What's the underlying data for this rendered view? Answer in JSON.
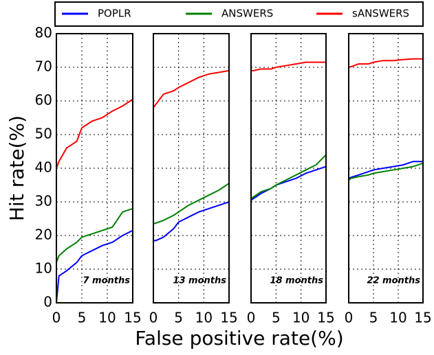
{
  "chart_data": [
    {
      "type": "line",
      "annotation": "7 months",
      "xlabel": "False positive rate(%)",
      "ylabel": "Hit rate(%)",
      "x": [
        0,
        0.5,
        2,
        4,
        5,
        7,
        9,
        11,
        13,
        15
      ],
      "series": [
        {
          "name": "POPLR",
          "color": "#0000ff",
          "values": [
            0,
            8,
            9.5,
            12,
            14,
            15.5,
            17,
            18,
            20,
            21.5
          ]
        },
        {
          "name": "ANSWERS",
          "color": "#008000",
          "values": [
            12,
            14,
            16,
            18,
            19.5,
            20.5,
            21.5,
            22.5,
            27,
            28
          ]
        },
        {
          "name": "sANSWERS",
          "color": "#ff0000",
          "values": [
            40,
            42,
            46,
            48,
            52,
            54,
            55,
            57,
            58.5,
            60.5
          ]
        }
      ],
      "xlim": [
        0,
        15
      ],
      "xticks": [
        0,
        5,
        10,
        15
      ],
      "ylim": [
        0,
        80
      ],
      "yticks": [
        0,
        10,
        20,
        30,
        40,
        50,
        60,
        70,
        80
      ],
      "grid": true
    },
    {
      "type": "line",
      "annotation": "13 months",
      "x": [
        0,
        0.5,
        2,
        4,
        5,
        7,
        9,
        11,
        13,
        15
      ],
      "series": [
        {
          "color": "#0000ff",
          "values": [
            18.5,
            18.5,
            19.5,
            22,
            24,
            25.5,
            27,
            28,
            29,
            30
          ]
        },
        {
          "color": "#008000",
          "values": [
            23.5,
            23.7,
            24.5,
            26,
            27,
            29,
            30.5,
            32,
            33.5,
            35.5
          ]
        },
        {
          "color": "#ff0000",
          "values": [
            58,
            59,
            62,
            63,
            64,
            65.5,
            67,
            68,
            68.5,
            69
          ]
        }
      ],
      "xlim": [
        0,
        15
      ],
      "xticks": [
        0,
        5,
        10,
        15
      ],
      "ylim": [
        0,
        80
      ],
      "grid": true
    },
    {
      "type": "line",
      "annotation": "18 months",
      "x": [
        0,
        0.5,
        2,
        4,
        5,
        7,
        9,
        11,
        13,
        15
      ],
      "series": [
        {
          "color": "#0000ff",
          "values": [
            30.5,
            31,
            32.5,
            34,
            35,
            36,
            37,
            38.5,
            39.5,
            40.5
          ]
        },
        {
          "color": "#008000",
          "values": [
            31,
            31.5,
            33,
            34,
            35,
            36.5,
            38,
            39.5,
            41,
            44
          ]
        },
        {
          "color": "#ff0000",
          "values": [
            69,
            69,
            69.5,
            69.5,
            70,
            70.5,
            71,
            71.5,
            71.5,
            71.5
          ]
        }
      ],
      "xlim": [
        0,
        15
      ],
      "xticks": [
        0,
        5,
        10,
        15
      ],
      "ylim": [
        0,
        80
      ],
      "grid": true
    },
    {
      "type": "line",
      "annotation": "22 months",
      "x": [
        0,
        0.5,
        2,
        4,
        5,
        7,
        9,
        11,
        13,
        15
      ],
      "series": [
        {
          "color": "#0000ff",
          "values": [
            37,
            37.3,
            38,
            39,
            39.5,
            40,
            40.5,
            41,
            42,
            42
          ]
        },
        {
          "color": "#008000",
          "values": [
            36.5,
            37,
            37.5,
            38,
            38.5,
            39,
            39.5,
            40,
            40.5,
            41.5
          ]
        },
        {
          "color": "#ff0000",
          "values": [
            70,
            70.2,
            71,
            71,
            71.5,
            72,
            72,
            72.3,
            72.5,
            72.5
          ]
        }
      ],
      "xlim": [
        0,
        15
      ],
      "xticks": [
        0,
        5,
        10,
        15
      ],
      "ylim": [
        0,
        80
      ],
      "grid": true
    }
  ]
}
